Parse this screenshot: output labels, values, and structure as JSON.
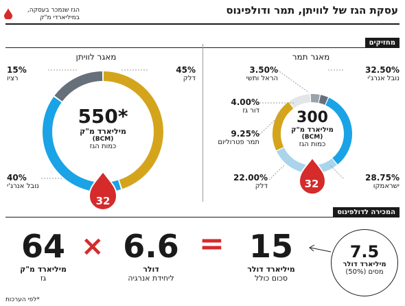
{
  "header": {
    "title": "עסקת הגז של לוויתן, תמר ודולפינוס",
    "legend_text_1": "הגז שנמכר בעסקה,",
    "legend_text_2": "במיליארדי מ\"ק",
    "holders_label": "מחזיקים",
    "sale_label": "המכירה לדולפינוס",
    "footnote": "*לפי הערכות"
  },
  "colors": {
    "yellow": "#d4a51c",
    "blue": "#1aa3e6",
    "light_blue": "#a9d4ec",
    "gray_dark": "#66707a",
    "gray_mid": "#9aa3aa",
    "gray_light": "#cfd4d8",
    "red": "#d52b2b"
  },
  "chart_data": [
    {
      "type": "pie",
      "title": "מאגר לוויתן",
      "center_value": "550*",
      "center_unit": "מיליארד מ\"ק",
      "center_unit_en": "(BCM)",
      "center_caption": "כמות הגז",
      "sold_value": "32",
      "slices": [
        {
          "pct_label": "45%",
          "name": "דלק",
          "value": 45,
          "color": "#d4a51c"
        },
        {
          "pct_label": "40%",
          "name": "נובל אנרג'י",
          "value": 40,
          "color": "#1aa3e6"
        },
        {
          "pct_label": "15%",
          "name": "רציו",
          "value": 15,
          "color": "#66707a"
        }
      ]
    },
    {
      "type": "pie",
      "title": "מאגר תמר",
      "center_value": "300",
      "center_unit": "מיליארד מ\"ק",
      "center_unit_en": "(BCM)",
      "center_caption": "כמות הגז",
      "sold_value": "32",
      "slices": [
        {
          "pct_label": "32.50%",
          "name": "נובל אנרג'י",
          "value": 32.5,
          "color": "#1aa3e6"
        },
        {
          "pct_label": "28.75%",
          "name": "ישראמקו",
          "value": 28.75,
          "color": "#a9d4ec"
        },
        {
          "pct_label": "22.00%",
          "name": "דלק",
          "value": 22.0,
          "color": "#d4a51c"
        },
        {
          "pct_label": "9.25%",
          "name": "תמר פטרוליום",
          "value": 9.25,
          "color": "#e3e6e8"
        },
        {
          "pct_label": "4.00%",
          "name": "דור גז",
          "value": 4.0,
          "color": "#9aa3aa"
        },
        {
          "pct_label": "3.50%",
          "name": "הראל ותשי",
          "value": 3.5,
          "color": "#66707a"
        }
      ]
    }
  ],
  "formula": {
    "total_value": "64",
    "total_unit": "מיליארד מ\"ק",
    "total_caption": "גז",
    "multiply": "×",
    "price_value": "6.6",
    "price_unit": "דולר",
    "price_caption": "ליחידת אנרגיה",
    "equals": "=",
    "sum_value": "15",
    "sum_unit": "מיליארד דולר",
    "sum_caption": "סכום כולל",
    "tax_value": "7.5",
    "tax_unit": "מיליארד דולר",
    "tax_caption": "מסים (50%)"
  }
}
